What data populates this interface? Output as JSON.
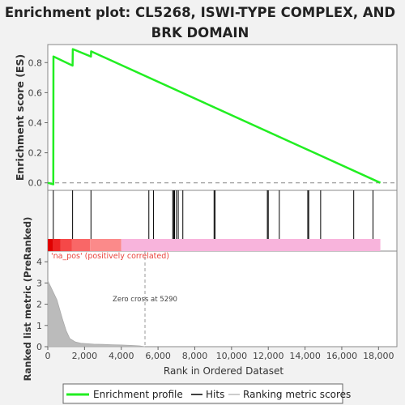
{
  "chart": {
    "title_line1": "Enrichment plot: CL5268, ISWI-TYPE COMPLEX, AND",
    "title_line2": "BRK DOMAIN",
    "es_ylabel": "Enrichment score (ES)",
    "metric_ylabel_line1": "Ranked list metric (PreRanked)",
    "xlabel": "Rank in Ordered Dataset",
    "pos_label": "'na_pos' (positively correlated)",
    "zero_cross_label": "Zero cross at 5290",
    "legend": {
      "enrichment": "Enrichment profile",
      "hits": "Hits",
      "metric": "Ranking metric scores"
    }
  },
  "colors": {
    "enrichment_line": "#22ee22",
    "hit_line": "#000000",
    "metric_fill": "#bbbbbb",
    "pos_red": "#ee1111",
    "neg_pink": "#f8b4dc",
    "panel_bg": "#ffffff",
    "page_bg": "#f2f2f2"
  },
  "chart_data": {
    "type": "line",
    "es_ylim": [
      -0.05,
      0.92
    ],
    "es_yticks": [
      0.0,
      0.2,
      0.4,
      0.6,
      0.8
    ],
    "es_ytick_labels": [
      "0.0",
      "0.2",
      "0.4",
      "0.6",
      "0.8"
    ],
    "metric_ylim": [
      0,
      4.5
    ],
    "metric_yticks": [
      0,
      1,
      2,
      3,
      4
    ],
    "metric_ytick_labels": [
      "0",
      "1",
      "2",
      "3",
      "4"
    ],
    "xlim": [
      0,
      19000
    ],
    "xticks": [
      0,
      2000,
      4000,
      6000,
      8000,
      10000,
      12000,
      14000,
      16000,
      18000
    ],
    "xtick_labels": [
      "0",
      "2,000",
      "4,000",
      "6,000",
      "8,000",
      "10,000",
      "12,000",
      "14,000",
      "16,000",
      "18,000"
    ],
    "zero_cross": 5290,
    "dataset_size": 18100,
    "enrichment_profile": {
      "x": [
        0,
        300,
        310,
        1350,
        1360,
        2350,
        2360,
        18100
      ],
      "y": [
        0.0,
        -0.01,
        0.84,
        0.78,
        0.89,
        0.84,
        0.875,
        0.0
      ]
    },
    "hits": [
      300,
      1350,
      2350,
      5500,
      5750,
      6800,
      6850,
      6900,
      7000,
      7100,
      7350,
      9050,
      9100,
      11950,
      12000,
      12600,
      14150,
      14200,
      14850,
      16650,
      17700
    ],
    "ranking_metric": {
      "x": [
        0,
        200,
        500,
        800,
        1000,
        1200,
        1500,
        1800,
        2100,
        2500,
        3000,
        3500,
        4000,
        4500,
        5000,
        5290
      ],
      "y": [
        3.1,
        2.75,
        2.2,
        1.3,
        0.75,
        0.38,
        0.22,
        0.16,
        0.14,
        0.12,
        0.11,
        0.09,
        0.08,
        0.06,
        0.04,
        0.0
      ]
    },
    "color_bar": [
      {
        "from": 0,
        "to": 300,
        "color": "#e00000"
      },
      {
        "from": 300,
        "to": 700,
        "color": "#ee2222"
      },
      {
        "from": 700,
        "to": 1300,
        "color": "#f54848"
      },
      {
        "from": 1300,
        "to": 2300,
        "color": "#f96767"
      },
      {
        "from": 2300,
        "to": 4000,
        "color": "#fb8a8a"
      },
      {
        "from": 4000,
        "to": 18100,
        "color": "#f8b4dc"
      }
    ]
  }
}
